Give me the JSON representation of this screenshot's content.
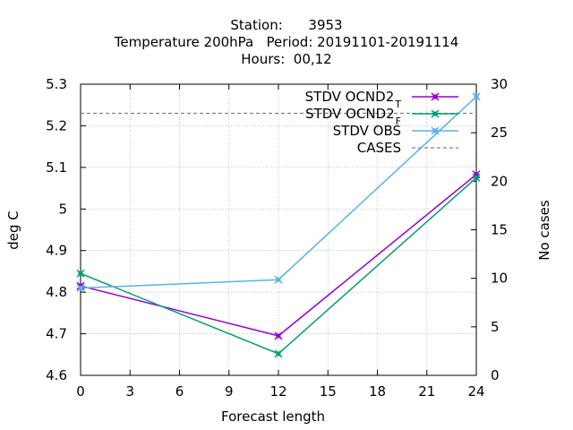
{
  "chart_data": {
    "type": "line",
    "title_lines": [
      "Station:      3953",
      "Temperature 200hPa   Period: 20191101-20191114",
      "Hours:  00,12"
    ],
    "xlabel": "Forecast length",
    "ylabel": "deg C",
    "y2label": "No cases",
    "xlim": [
      0,
      24
    ],
    "ylim": [
      4.6,
      5.3
    ],
    "y2lim": [
      0,
      30
    ],
    "x_ticks": [
      0,
      3,
      6,
      9,
      12,
      15,
      18,
      21,
      24
    ],
    "y_ticks": [
      "4.6",
      "4.7",
      "4.8",
      "4.9",
      "5",
      "5.1",
      "5.2",
      "5.3"
    ],
    "y2_ticks": [
      0,
      5,
      10,
      15,
      20,
      25,
      30
    ],
    "grid": true,
    "legend_position": "top-right",
    "series": [
      {
        "name": "STDV OCND2",
        "subscript": "T",
        "color": "#9400d3",
        "axis": "y",
        "x": [
          0,
          12,
          24
        ],
        "values": [
          4.815,
          4.695,
          5.083
        ]
      },
      {
        "name": "STDV OCND2",
        "subscript": "F",
        "color": "#009e73",
        "axis": "y",
        "x": [
          0,
          12,
          24
        ],
        "values": [
          4.845,
          4.652,
          5.075
        ]
      },
      {
        "name": "STDV OBS",
        "subscript": "",
        "color": "#56b4e9",
        "axis": "y",
        "x": [
          0,
          12,
          24
        ],
        "values": [
          4.81,
          4.83,
          5.27
        ]
      },
      {
        "name": "CASES",
        "subscript": "",
        "color": "#808080",
        "axis": "y2",
        "style": "dashed",
        "x": [
          0,
          24
        ],
        "values": [
          27,
          27
        ]
      }
    ]
  }
}
